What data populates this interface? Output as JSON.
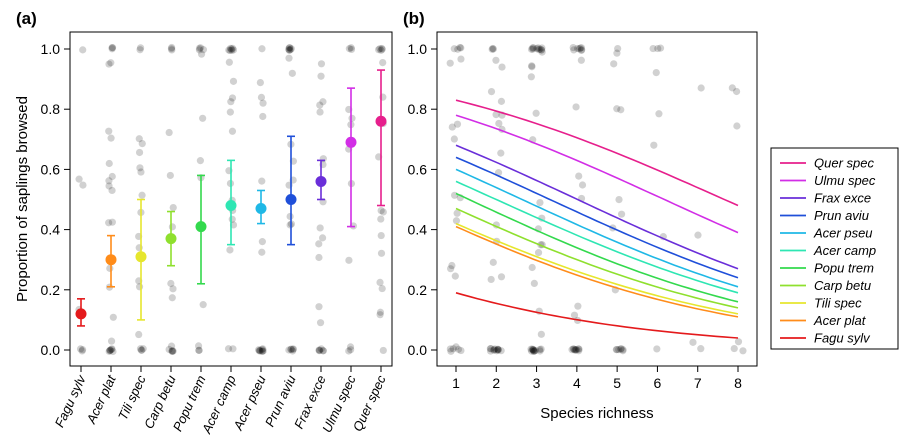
{
  "chart_data": [
    {
      "panel_label": "(a)",
      "type": "scatter",
      "ylabel": "Proportion of saplings browsed",
      "xlabel": "",
      "ylim": [
        0,
        1
      ],
      "yticks": [
        "0.0",
        "0.2",
        "0.4",
        "0.6",
        "0.8",
        "1.0"
      ],
      "categories": [
        "Fagu sylv",
        "Acer plat",
        "Tili spec",
        "Carp betu",
        "Popu trem",
        "Acer camp",
        "Acer pseu",
        "Prun aviu",
        "Frax exce",
        "Ulmu spec",
        "Quer spec"
      ],
      "colors": [
        "#e41a1c",
        "#ff8c1a",
        "#e6e62e",
        "#8fe02e",
        "#33d94d",
        "#2ee6b3",
        "#1fb8e6",
        "#1f4fd9",
        "#6a2ed9",
        "#d22ee6",
        "#e61f8c"
      ],
      "means": [
        0.12,
        0.3,
        0.31,
        0.37,
        0.41,
        0.48,
        0.47,
        0.5,
        0.56,
        0.69,
        0.76
      ],
      "lower": [
        0.08,
        0.21,
        0.1,
        0.28,
        0.22,
        0.35,
        0.42,
        0.35,
        0.5,
        0.41,
        0.48
      ],
      "upper": [
        0.17,
        0.38,
        0.5,
        0.46,
        0.58,
        0.63,
        0.53,
        0.71,
        0.63,
        0.87,
        0.93
      ],
      "grid": false
    },
    {
      "panel_label": "(b)",
      "type": "line",
      "xlabel": "Species richness",
      "ylabel": "",
      "xlim": [
        1,
        8
      ],
      "ylim": [
        0,
        1
      ],
      "xticks": [
        "1",
        "2",
        "3",
        "4",
        "5",
        "6",
        "7",
        "8"
      ],
      "yticks": [
        "0.0",
        "0.2",
        "0.4",
        "0.6",
        "0.8",
        "1.0"
      ],
      "series": [
        {
          "name": "Quer spec",
          "color": "#e61f8c",
          "start": 0.83,
          "end": 0.48
        },
        {
          "name": "Ulmu spec",
          "color": "#d22ee6",
          "start": 0.78,
          "end": 0.39
        },
        {
          "name": "Frax exce",
          "color": "#6a2ed9",
          "start": 0.68,
          "end": 0.27
        },
        {
          "name": "Prun aviu",
          "color": "#1f4fd9",
          "start": 0.64,
          "end": 0.24
        },
        {
          "name": "Acer pseu",
          "color": "#1fb8e6",
          "start": 0.6,
          "end": 0.21
        },
        {
          "name": "Acer camp",
          "color": "#2ee6b3",
          "start": 0.56,
          "end": 0.19
        },
        {
          "name": "Popu trem",
          "color": "#33d94d",
          "start": 0.52,
          "end": 0.16
        },
        {
          "name": "Carp betu",
          "color": "#8fe02e",
          "start": 0.47,
          "end": 0.14
        },
        {
          "name": "Tili spec",
          "color": "#e6e62e",
          "start": 0.42,
          "end": 0.12
        },
        {
          "name": "Acer plat",
          "color": "#ff8c1a",
          "start": 0.41,
          "end": 0.11
        },
        {
          "name": "Fagu sylv",
          "color": "#e41a1c",
          "start": 0.19,
          "end": 0.04
        }
      ],
      "legend_placement": "right",
      "grid": false
    }
  ]
}
